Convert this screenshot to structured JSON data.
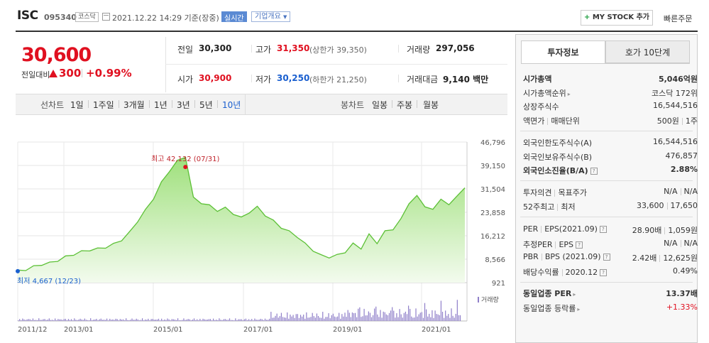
{
  "header": {
    "name": "ISC",
    "code": "095340",
    "market": "코스닥",
    "datetime": "2021.12.22 14:29 기준(장중)",
    "realtime": "실시간",
    "company": "기업개요",
    "mystock": "MY STOCK 추가",
    "quick_order": "빠른주문"
  },
  "price": {
    "current": "30,600",
    "change_label": "전일대비",
    "change": "300",
    "change_pct": "+0.99%"
  },
  "stats": {
    "prev_label": "전일",
    "prev": "30,300",
    "high_label": "고가",
    "high": "31,350",
    "upper_label": "(상한가 39,350)",
    "volume_label": "거래량",
    "volume": "297,056",
    "open_label": "시가",
    "open": "30,900",
    "low_label": "저가",
    "low": "30,250",
    "lower_label": "(하한가 21,250)",
    "amount_label": "거래대금",
    "amount": "9,140 백만"
  },
  "tabs": {
    "line_label": "선차트",
    "line_items": [
      "1일",
      "1주일",
      "3개월",
      "1년",
      "3년",
      "5년",
      "10년"
    ],
    "candle_label": "봉차트",
    "candle_items": [
      "일봉",
      "주봉",
      "월봉"
    ]
  },
  "chart_data": {
    "type": "area",
    "y_ticks": [
      "46,796",
      "39,150",
      "31,504",
      "23,858",
      "16,212",
      "8,566",
      "921"
    ],
    "ylim": [
      921,
      46796
    ],
    "x_ticks": [
      "2011/12",
      "2013/01",
      "2015/01",
      "2017/01",
      "2019/01",
      "2021/01"
    ],
    "max_label": "최고 42,132 (07/31)",
    "min_label": "최저 4,667 (12/23)",
    "volume_label": "거래량",
    "series": [
      {
        "values": [
          4667,
          5200,
          6100,
          6900,
          7300,
          8200,
          9300,
          10200,
          11000,
          11600,
          11900,
          12500,
          13400,
          14900,
          17200,
          21000,
          24500,
          28500,
          33500,
          37500,
          40500,
          42132,
          28500,
          27000,
          26000,
          24500,
          25200,
          23500,
          22000,
          24000,
          25500,
          23000,
          21000,
          19000,
          17500,
          16000,
          13500,
          11500,
          9700,
          9300,
          9800,
          11000,
          13500,
          12200,
          16500,
          14000,
          17500,
          18500,
          21500,
          27000,
          29000,
          26000,
          24500,
          28500,
          26000,
          29500,
          31504
        ]
      }
    ]
  },
  "right_panel": {
    "tab1": "투자정보",
    "tab2": "호가 10단계",
    "rows1": [
      {
        "label": "시가총액",
        "value": "5,046억원"
      },
      {
        "label": "시가총액순위",
        "value": "코스닥 172위"
      },
      {
        "label": "상장주식수",
        "value": "16,544,516"
      },
      {
        "label": "액면가",
        "label2": "매매단위",
        "value": "500원",
        "value2": "1주"
      }
    ],
    "rows2": [
      {
        "label": "외국인한도주식수(A)",
        "value": "16,544,516"
      },
      {
        "label": "외국인보유주식수(B)",
        "value": "476,857"
      },
      {
        "label": "외국인소진율(B/A)",
        "value": "2.88%"
      }
    ],
    "rows3": [
      {
        "label": "투자의견",
        "label2": "목표주가",
        "value": "N/A",
        "value2": "N/A"
      },
      {
        "label": "52주최고",
        "label2": "최저",
        "value": "33,600",
        "value2": "17,650"
      }
    ],
    "rows4": [
      {
        "label": "PER",
        "label2": "EPS(2021.09)",
        "value": "28.90배",
        "value2": "1,059원"
      },
      {
        "label": "추정PER",
        "label2": "EPS",
        "value": "N/A",
        "value2": "N/A"
      },
      {
        "label": "PBR",
        "label2": "BPS (2021.09)",
        "value": "2.42배",
        "value2": "12,625원"
      },
      {
        "label": "배당수익률",
        "label2": "2020.12",
        "value": "0.49%"
      }
    ],
    "rows5": [
      {
        "label": "동일업종 PER",
        "value": "13.37배"
      },
      {
        "label": "동일업종 등락률",
        "value": "+1.33%"
      }
    ]
  }
}
